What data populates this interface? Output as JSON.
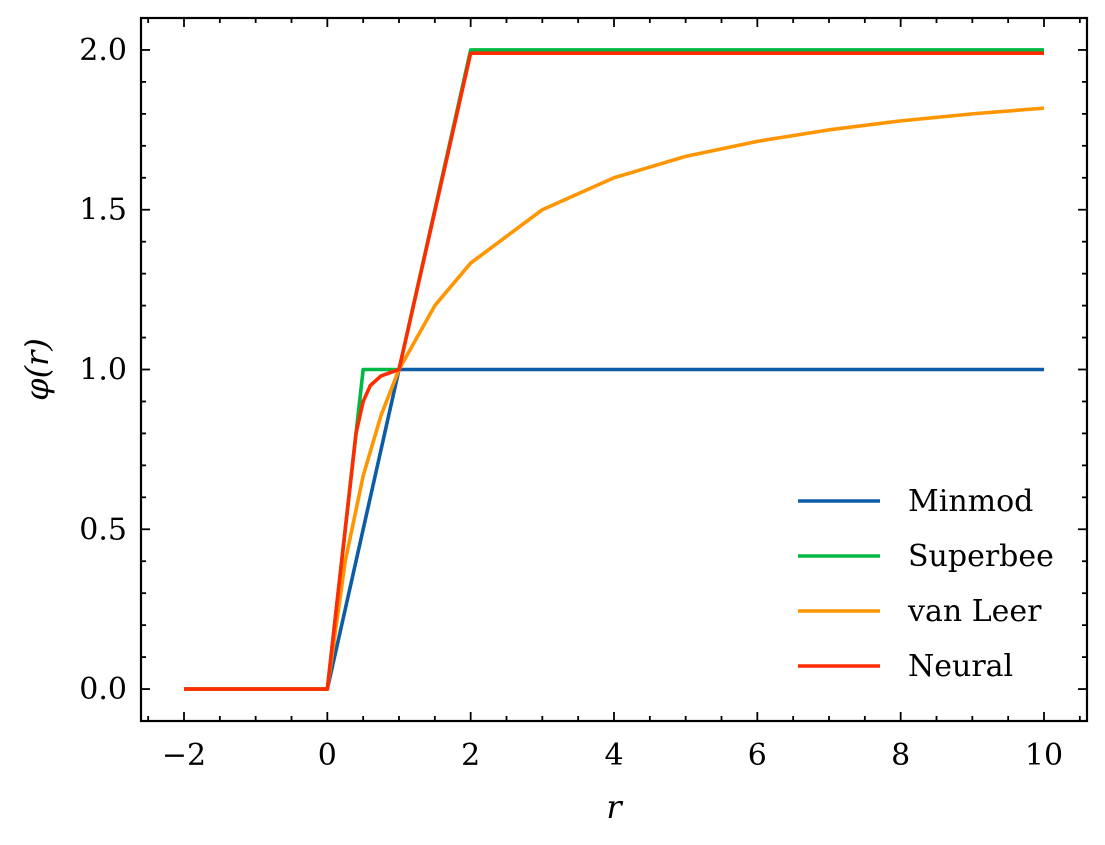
{
  "chart_data": {
    "type": "line",
    "title": "",
    "xlabel": "r",
    "ylabel": "φ(r)",
    "xlim": [
      -2.6,
      10.6
    ],
    "ylim": [
      -0.1,
      2.1
    ],
    "xticks": [
      -2,
      0,
      2,
      4,
      6,
      8,
      10
    ],
    "xtick_labels": [
      "−2",
      "0",
      "2",
      "4",
      "6",
      "8",
      "10"
    ],
    "yticks": [
      0.0,
      0.5,
      1.0,
      1.5,
      2.0
    ],
    "ytick_labels": [
      "0.0",
      "0.5",
      "1.0",
      "1.5",
      "2.0"
    ],
    "grid": false,
    "legend_position": "lower-right",
    "series": [
      {
        "name": "Minmod",
        "color": "#0C5DA5",
        "x": [
          -2,
          0,
          1,
          10
        ],
        "y": [
          0,
          0,
          1,
          1
        ]
      },
      {
        "name": "Superbee",
        "color": "#00B945",
        "x": [
          -2,
          0,
          0.5,
          1,
          2,
          10
        ],
        "y": [
          0,
          0,
          1,
          1,
          2,
          2
        ]
      },
      {
        "name": "van Leer",
        "color": "#FF9500",
        "x": [
          -2,
          0,
          0.25,
          0.5,
          0.75,
          1,
          1.5,
          2,
          3,
          4,
          5,
          6,
          7,
          8,
          9,
          10
        ],
        "y": [
          0,
          0,
          0.4,
          0.667,
          0.857,
          1.0,
          1.2,
          1.333,
          1.5,
          1.6,
          1.667,
          1.714,
          1.75,
          1.778,
          1.8,
          1.818
        ]
      },
      {
        "name": "Neural",
        "color": "#FF2C00",
        "x": [
          -2,
          0,
          0.25,
          0.4,
          0.5,
          0.6,
          0.75,
          1.0,
          2.0,
          10
        ],
        "y": [
          0,
          0,
          0.5,
          0.8,
          0.9,
          0.95,
          0.98,
          1.0,
          1.99,
          1.99
        ]
      }
    ]
  }
}
